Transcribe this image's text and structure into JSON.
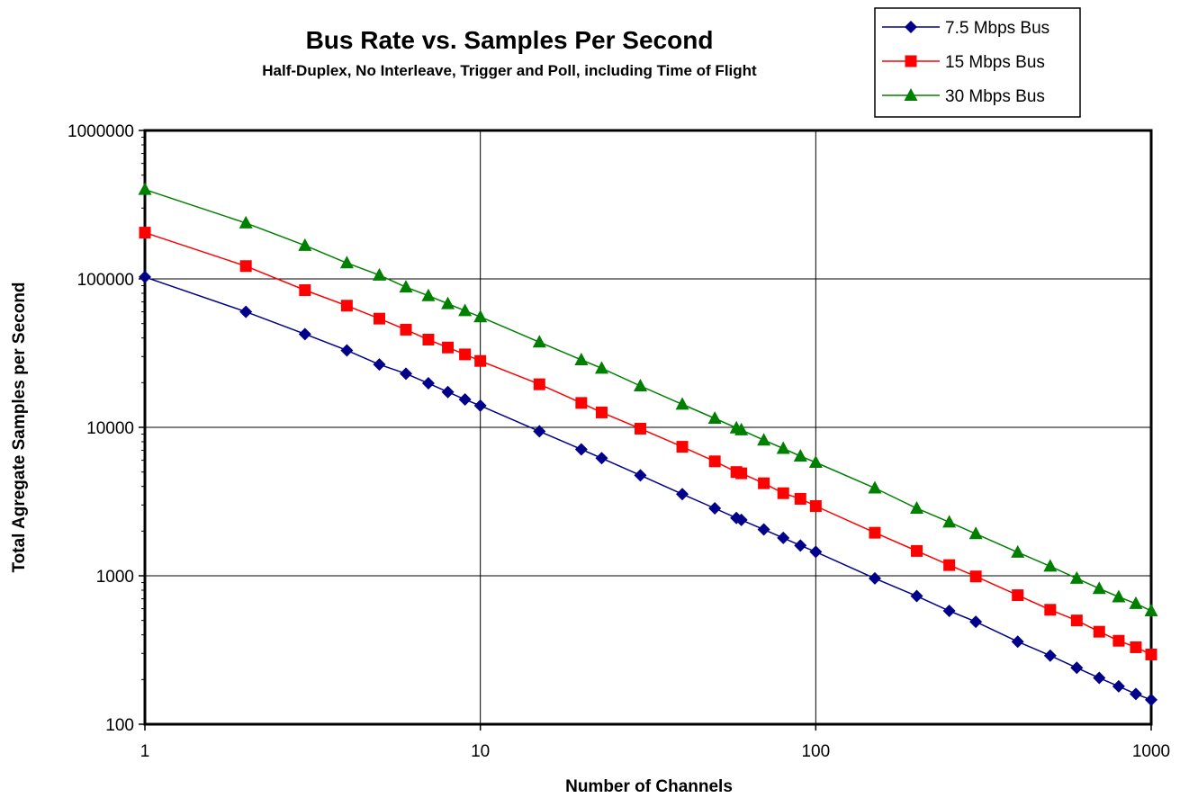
{
  "chart_data": {
    "type": "line",
    "title": "Bus Rate vs. Samples Per Second",
    "subtitle": "Half-Duplex, No Interleave, Trigger and Poll, including Time of Flight",
    "xlabel": "Number of Channels",
    "ylabel": "Total Agregate Samples per Second",
    "x_scale": "log",
    "y_scale": "log",
    "xlim": [
      1,
      1000
    ],
    "ylim": [
      100,
      1000000
    ],
    "x_ticks": [
      "1",
      "10",
      "100",
      "1000"
    ],
    "y_ticks": [
      "100",
      "1000",
      "10000",
      "100000",
      "1000000"
    ],
    "grid": true,
    "legend_position": "top-right",
    "x": [
      1,
      2,
      3,
      4,
      5,
      6,
      7,
      8,
      9,
      10,
      15,
      20,
      23,
      30,
      40,
      50,
      58,
      60,
      70,
      80,
      90,
      100,
      150,
      200,
      250,
      300,
      400,
      500,
      600,
      700,
      800,
      900,
      1000
    ],
    "series": [
      {
        "name": "7.5 Mbps Bus",
        "color": "#00008B",
        "marker": "diamond",
        "values": [
          103000,
          60000,
          42500,
          33000,
          26500,
          23000,
          19800,
          17300,
          15400,
          14000,
          9400,
          7100,
          6200,
          4750,
          3550,
          2850,
          2450,
          2380,
          2050,
          1800,
          1600,
          1450,
          960,
          730,
          580,
          490,
          360,
          290,
          240,
          205,
          180,
          160,
          146
        ]
      },
      {
        "name": "15 Mbps Bus",
        "color": "#FF0000",
        "marker": "square",
        "values": [
          205000,
          122000,
          84000,
          66000,
          54000,
          45500,
          39000,
          34500,
          31000,
          28000,
          19500,
          14600,
          12600,
          9800,
          7400,
          5900,
          5000,
          4900,
          4200,
          3600,
          3300,
          2950,
          1950,
          1470,
          1180,
          990,
          740,
          590,
          500,
          420,
          365,
          330,
          295
        ]
      },
      {
        "name": "30 Mbps Bus",
        "color": "#008000",
        "marker": "triangle",
        "values": [
          400000,
          238000,
          168000,
          128000,
          106000,
          88000,
          77000,
          68000,
          61000,
          55500,
          37500,
          28500,
          25000,
          19000,
          14300,
          11500,
          9900,
          9600,
          8200,
          7200,
          6400,
          5800,
          3900,
          2850,
          2300,
          1920,
          1440,
          1160,
          960,
          820,
          720,
          650,
          580
        ]
      }
    ]
  }
}
